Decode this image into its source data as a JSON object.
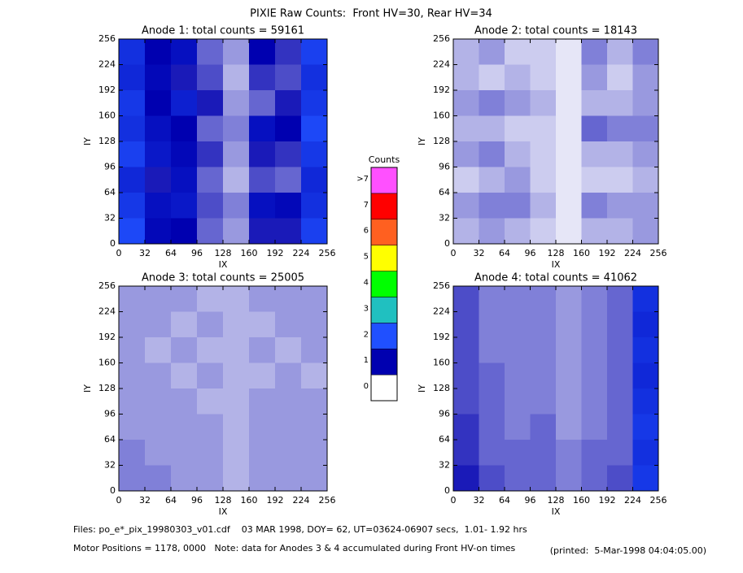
{
  "title": "PIXIE Raw Counts:  Front HV=30, Rear HV=34",
  "chart_data": [
    {
      "type": "heatmap",
      "title": "Anode 1: total counts = 59161",
      "xlabel": "IX",
      "ylabel": "IY",
      "xlim": [
        0,
        256
      ],
      "ylim": [
        0,
        256
      ],
      "xticks": [
        0,
        32,
        64,
        96,
        128,
        160,
        192,
        224,
        256
      ],
      "yticks": [
        0,
        32,
        64,
        96,
        128,
        160,
        192,
        224,
        256
      ],
      "values": [
        [
          1.6,
          1.0,
          1.2,
          0.6,
          0.4,
          1.0,
          0.8,
          1.8
        ],
        [
          1.5,
          1.1,
          0.9,
          0.7,
          0.3,
          0.8,
          0.7,
          1.6
        ],
        [
          1.7,
          1.0,
          1.4,
          0.9,
          0.4,
          0.6,
          0.9,
          1.7
        ],
        [
          1.6,
          1.2,
          1.0,
          0.6,
          0.5,
          1.2,
          1.0,
          1.9
        ],
        [
          1.8,
          1.3,
          1.1,
          0.8,
          0.4,
          0.9,
          0.8,
          1.7
        ],
        [
          1.5,
          0.9,
          1.2,
          0.6,
          0.3,
          0.7,
          0.6,
          1.5
        ],
        [
          1.7,
          1.2,
          1.3,
          0.7,
          0.5,
          1.2,
          1.1,
          1.6
        ],
        [
          1.9,
          1.1,
          1.0,
          0.6,
          0.4,
          0.9,
          0.9,
          1.8
        ]
      ]
    },
    {
      "type": "heatmap",
      "title": "Anode 2: total counts = 18143",
      "xlabel": "IX",
      "ylabel": "IY",
      "xlim": [
        0,
        256
      ],
      "ylim": [
        0,
        256
      ],
      "xticks": [
        0,
        32,
        64,
        96,
        128,
        160,
        192,
        224,
        256
      ],
      "yticks": [
        0,
        32,
        64,
        96,
        128,
        160,
        192,
        224,
        256
      ],
      "values": [
        [
          0.3,
          0.4,
          0.2,
          0.2,
          0.1,
          0.5,
          0.3,
          0.5
        ],
        [
          0.3,
          0.2,
          0.3,
          0.2,
          0.1,
          0.4,
          0.2,
          0.4
        ],
        [
          0.4,
          0.5,
          0.4,
          0.3,
          0.1,
          0.3,
          0.3,
          0.4
        ],
        [
          0.3,
          0.3,
          0.2,
          0.2,
          0.1,
          0.6,
          0.5,
          0.5
        ],
        [
          0.4,
          0.5,
          0.3,
          0.2,
          0.1,
          0.3,
          0.3,
          0.4
        ],
        [
          0.2,
          0.3,
          0.4,
          0.2,
          0.1,
          0.2,
          0.2,
          0.3
        ],
        [
          0.4,
          0.5,
          0.5,
          0.3,
          0.1,
          0.5,
          0.4,
          0.4
        ],
        [
          0.3,
          0.4,
          0.3,
          0.2,
          0.1,
          0.3,
          0.3,
          0.4
        ]
      ]
    },
    {
      "type": "heatmap",
      "title": "Anode 3: total counts = 25005",
      "xlabel": "IX",
      "ylabel": "IY",
      "xlim": [
        0,
        256
      ],
      "ylim": [
        0,
        256
      ],
      "xticks": [
        0,
        32,
        64,
        96,
        128,
        160,
        192,
        224,
        256
      ],
      "yticks": [
        0,
        32,
        64,
        96,
        128,
        160,
        192,
        224,
        256
      ],
      "values": [
        [
          0.4,
          0.4,
          0.4,
          0.3,
          0.3,
          0.4,
          0.4,
          0.4
        ],
        [
          0.4,
          0.4,
          0.3,
          0.4,
          0.3,
          0.3,
          0.4,
          0.4
        ],
        [
          0.4,
          0.3,
          0.4,
          0.3,
          0.3,
          0.4,
          0.3,
          0.4
        ],
        [
          0.4,
          0.4,
          0.3,
          0.4,
          0.3,
          0.3,
          0.4,
          0.3
        ],
        [
          0.4,
          0.4,
          0.4,
          0.3,
          0.3,
          0.4,
          0.4,
          0.4
        ],
        [
          0.4,
          0.4,
          0.4,
          0.4,
          0.3,
          0.4,
          0.4,
          0.4
        ],
        [
          0.5,
          0.4,
          0.4,
          0.4,
          0.3,
          0.4,
          0.4,
          0.4
        ],
        [
          0.5,
          0.5,
          0.4,
          0.4,
          0.3,
          0.4,
          0.4,
          0.4
        ]
      ]
    },
    {
      "type": "heatmap",
      "title": "Anode 4: total counts = 41062",
      "xlabel": "IX",
      "ylabel": "IY",
      "xlim": [
        0,
        256
      ],
      "ylim": [
        0,
        256
      ],
      "xticks": [
        0,
        32,
        64,
        96,
        128,
        160,
        192,
        224,
        256
      ],
      "yticks": [
        0,
        32,
        64,
        96,
        128,
        160,
        192,
        224,
        256
      ],
      "values": [
        [
          0.7,
          0.5,
          0.5,
          0.5,
          0.4,
          0.5,
          0.6,
          1.6
        ],
        [
          0.7,
          0.5,
          0.5,
          0.5,
          0.4,
          0.5,
          0.6,
          1.5
        ],
        [
          0.7,
          0.5,
          0.5,
          0.5,
          0.4,
          0.5,
          0.6,
          1.6
        ],
        [
          0.7,
          0.6,
          0.5,
          0.5,
          0.4,
          0.5,
          0.6,
          1.5
        ],
        [
          0.7,
          0.6,
          0.5,
          0.5,
          0.4,
          0.5,
          0.6,
          1.6
        ],
        [
          0.8,
          0.6,
          0.5,
          0.6,
          0.4,
          0.5,
          0.6,
          1.7
        ],
        [
          0.8,
          0.6,
          0.6,
          0.6,
          0.5,
          0.6,
          0.6,
          1.6
        ],
        [
          0.9,
          0.7,
          0.6,
          0.6,
          0.5,
          0.6,
          0.7,
          1.7
        ]
      ]
    }
  ],
  "colorbar": {
    "title": "Counts",
    "ticks": [
      0,
      1,
      2,
      3,
      4,
      5,
      6,
      7,
      {
        "value": 8,
        "label": ">7"
      }
    ],
    "colors": [
      "#ffffff",
      "#0000b0",
      "#2050ff",
      "#20c0c0",
      "#00ff00",
      "#ffff00",
      "#ff6020",
      "#ff0000",
      "#ff50ff"
    ]
  },
  "footer": {
    "files": "Files: po_e*_pix_19980303_v01.cdf    03 MAR 1998, DOY= 62, UT=03624-06907 secs,  1.01- 1.92 hrs",
    "motor": "Motor Positions = 1178, 0000   Note: data for Anodes 3 & 4 accumulated during Front HV-on times",
    "printed": "(printed:  5-Mar-1998 04:04:05.00)"
  }
}
